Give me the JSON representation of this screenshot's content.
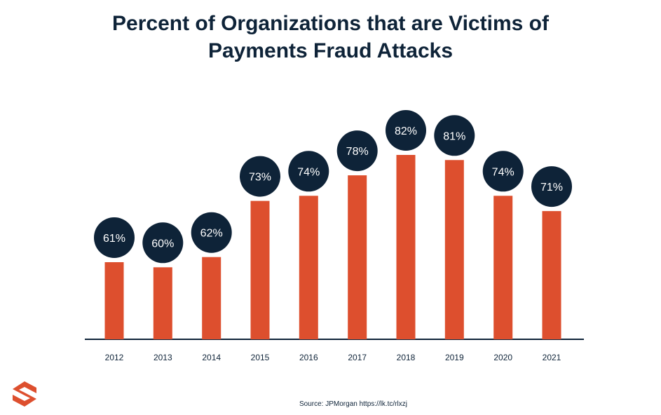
{
  "title_line1": "Percent of Organizations that are Victims of",
  "title_line2": "Payments Fraud Attacks",
  "source": "Source: JPMorgan https://lk.tc/rlxzj",
  "colors": {
    "bar": "#dd4f2e",
    "bubble": "#0e2338",
    "axis": "#0e2338",
    "text": "#0e2338"
  },
  "chart_data": {
    "type": "bar",
    "title": "Percent of Organizations that are Victims of Payments Fraud Attacks",
    "categories": [
      "2012",
      "2013",
      "2014",
      "2015",
      "2016",
      "2017",
      "2018",
      "2019",
      "2020",
      "2021"
    ],
    "values": [
      61,
      60,
      62,
      73,
      74,
      78,
      82,
      81,
      74,
      71
    ],
    "value_labels": [
      "61%",
      "60%",
      "62%",
      "73%",
      "74%",
      "78%",
      "82%",
      "81%",
      "74%",
      "71%"
    ],
    "unit": "%",
    "grid": false,
    "legend": "none"
  }
}
